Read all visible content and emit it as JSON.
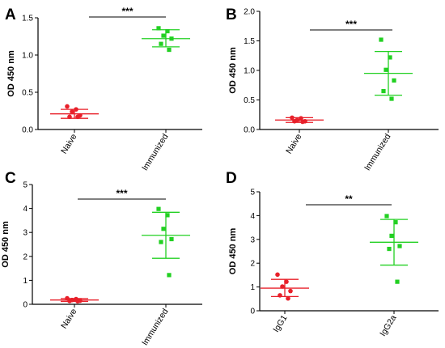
{
  "chart_data": [
    {
      "type": "scatter",
      "panel": "A",
      "ylabel": "OD 450 nm",
      "ylim": [
        0,
        1.5
      ],
      "yticks": [
        0.0,
        0.5,
        1.0,
        1.5
      ],
      "ytick_labels": [
        "0.0",
        "0.5",
        "1.0",
        "1.5"
      ],
      "categories": [
        "Naive",
        "Immunized"
      ],
      "significance": "***",
      "groups": [
        {
          "category": "Naive",
          "marker": "circle",
          "color": "#e8202a",
          "mean": 0.21,
          "err_low": 0.15,
          "err_high": 0.27,
          "points": [
            0.31,
            0.27,
            0.24,
            0.19,
            0.17,
            0.17
          ]
        },
        {
          "category": "Immunized",
          "marker": "square",
          "color": "#22d022",
          "mean": 1.22,
          "err_low": 1.11,
          "err_high": 1.34,
          "points": [
            1.36,
            1.32,
            1.26,
            1.22,
            1.15,
            1.07
          ]
        }
      ]
    },
    {
      "type": "scatter",
      "panel": "B",
      "ylabel": "OD 450 nm",
      "ylim": [
        0,
        2.0
      ],
      "yticks": [
        0.0,
        0.5,
        1.0,
        1.5,
        2.0
      ],
      "ytick_labels": [
        "0.0",
        "0.5",
        "1.0",
        "1.5",
        "2.0"
      ],
      "categories": [
        "Naive",
        "Immunized"
      ],
      "significance": "***",
      "groups": [
        {
          "category": "Naive",
          "marker": "circle",
          "color": "#e8202a",
          "mean": 0.16,
          "err_low": 0.12,
          "err_high": 0.2,
          "points": [
            0.2,
            0.19,
            0.16,
            0.14,
            0.14,
            0.13
          ]
        },
        {
          "category": "Immunized",
          "marker": "square",
          "color": "#22d022",
          "mean": 0.95,
          "err_low": 0.58,
          "err_high": 1.32,
          "points": [
            1.52,
            1.22,
            1.01,
            0.83,
            0.65,
            0.52
          ]
        }
      ]
    },
    {
      "type": "scatter",
      "panel": "C",
      "ylabel": "OD 450 nm",
      "ylim": [
        0,
        5
      ],
      "yticks": [
        0,
        1,
        2,
        3,
        4,
        5
      ],
      "ytick_labels": [
        "0",
        "1",
        "2",
        "3",
        "4",
        "5"
      ],
      "categories": [
        "Naive",
        "Immunized"
      ],
      "significance": "***",
      "groups": [
        {
          "category": "Naive",
          "marker": "circle",
          "color": "#e8202a",
          "mean": 0.18,
          "err_low": 0.12,
          "err_high": 0.24,
          "points": [
            0.25,
            0.22,
            0.18,
            0.15,
            0.14,
            0.13
          ]
        },
        {
          "category": "Immunized",
          "marker": "square",
          "color": "#22d022",
          "mean": 2.88,
          "err_low": 1.92,
          "err_high": 3.84,
          "points": [
            3.98,
            3.72,
            3.15,
            2.72,
            2.6,
            1.22
          ]
        }
      ]
    },
    {
      "type": "scatter",
      "panel": "D",
      "ylabel": "OD 450 nm",
      "ylim": [
        0,
        5
      ],
      "yticks": [
        0,
        1,
        2,
        3,
        4,
        5
      ],
      "ytick_labels": [
        "0",
        "1",
        "2",
        "3",
        "4",
        "5"
      ],
      "categories": [
        "IgG1",
        "IgG2a"
      ],
      "significance": "**",
      "groups": [
        {
          "category": "IgG1",
          "marker": "circle",
          "color": "#e8202a",
          "mean": 0.95,
          "err_low": 0.6,
          "err_high": 1.32,
          "points": [
            1.52,
            1.22,
            1.02,
            0.83,
            0.65,
            0.52
          ]
        },
        {
          "category": "IgG2a",
          "marker": "square",
          "color": "#22d022",
          "mean": 2.88,
          "err_low": 1.92,
          "err_high": 3.84,
          "points": [
            3.98,
            3.72,
            3.15,
            2.72,
            2.6,
            1.22
          ]
        }
      ]
    }
  ]
}
